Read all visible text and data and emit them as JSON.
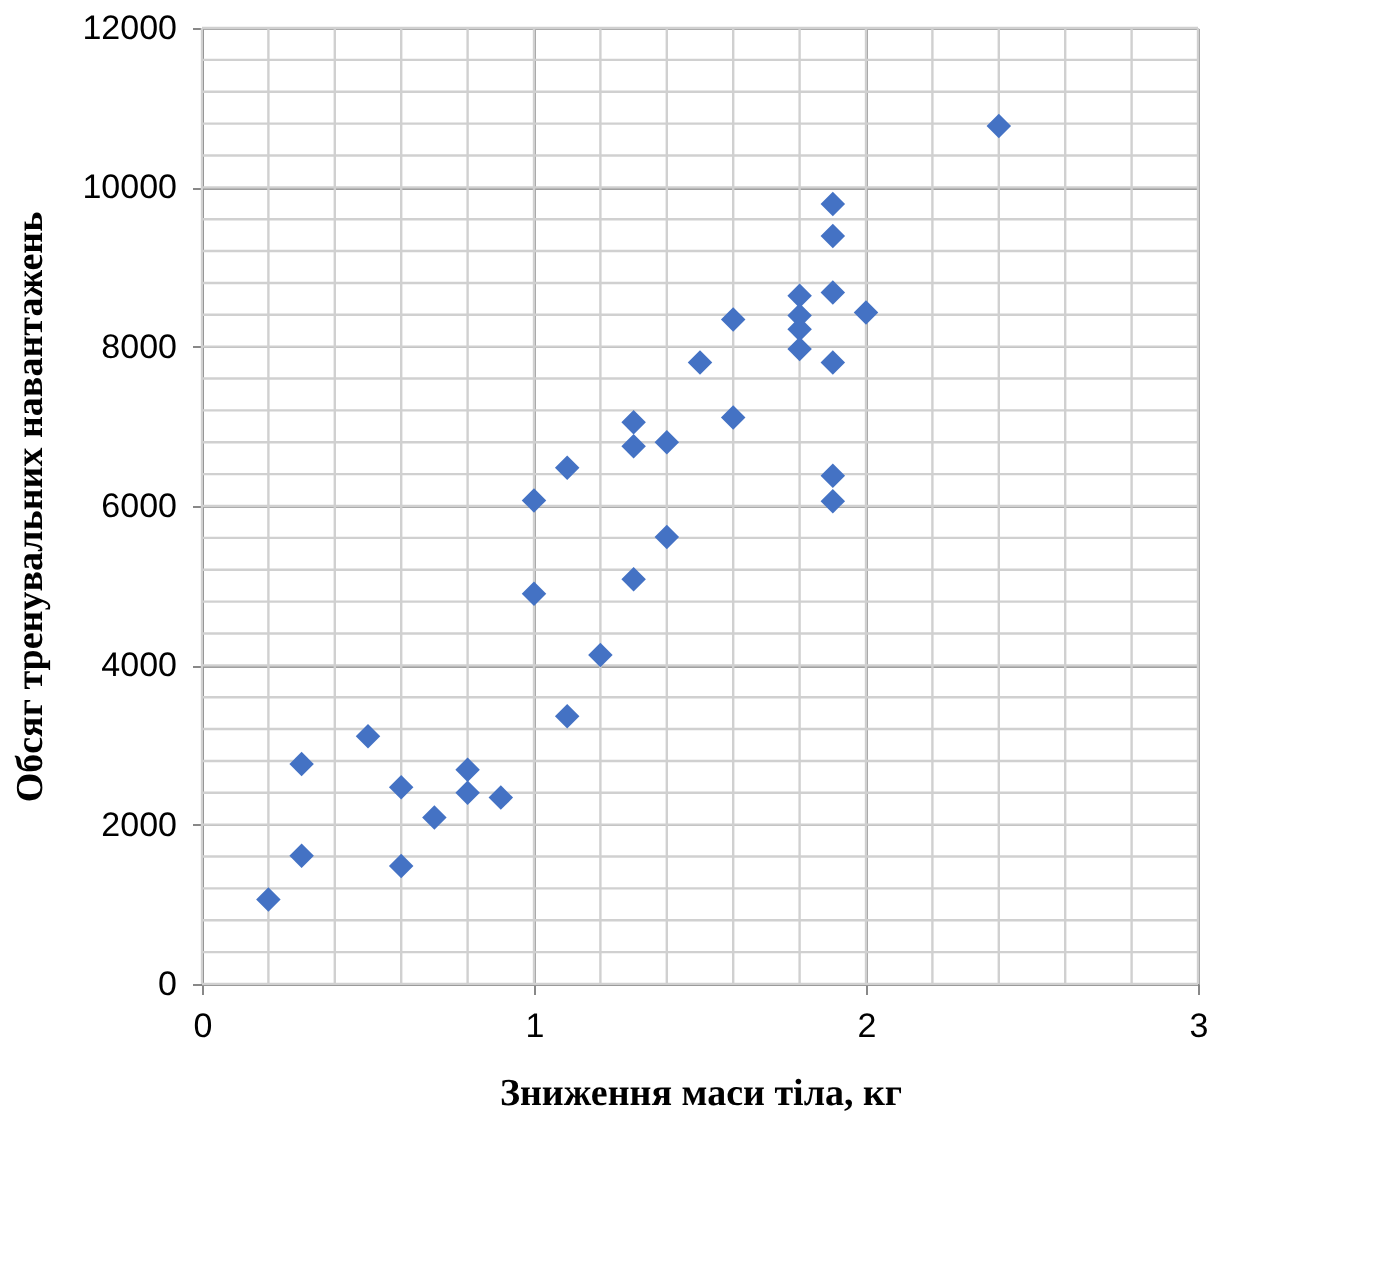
{
  "chart_data": {
    "type": "scatter",
    "xlabel": "Зниження маси тіла, кг",
    "ylabel": "Обсяг тренувальних навантажень",
    "x": [
      0.2,
      0.3,
      0.3,
      0.5,
      0.6,
      0.6,
      0.7,
      0.8,
      0.8,
      0.9,
      1.0,
      1.0,
      1.1,
      1.2,
      1.3,
      1.4,
      1.1,
      1.3,
      1.3,
      1.4,
      1.5,
      1.6,
      1.6,
      1.8,
      1.8,
      1.8,
      1.8,
      1.9,
      1.9,
      1.9,
      1.9,
      1.9,
      1.9,
      2.0,
      2.4
    ],
    "values": [
      1060,
      1610,
      2760,
      3110,
      2470,
      1480,
      2090,
      2690,
      2400,
      2340,
      4900,
      6070,
      3360,
      4130,
      5080,
      5610,
      6480,
      7050,
      6750,
      6800,
      7800,
      8340,
      7110,
      8640,
      8390,
      8220,
      7970,
      9790,
      9390,
      8680,
      7800,
      6380,
      6060,
      8430,
      10770
    ],
    "color": "#4472c4",
    "marker": "diamond",
    "xlim": [
      0,
      3
    ],
    "xticks": [
      0,
      1,
      2,
      3
    ],
    "ylim": [
      0,
      12000
    ],
    "yticks": [
      0,
      2000,
      4000,
      6000,
      8000,
      10000,
      12000
    ],
    "grid": true
  }
}
